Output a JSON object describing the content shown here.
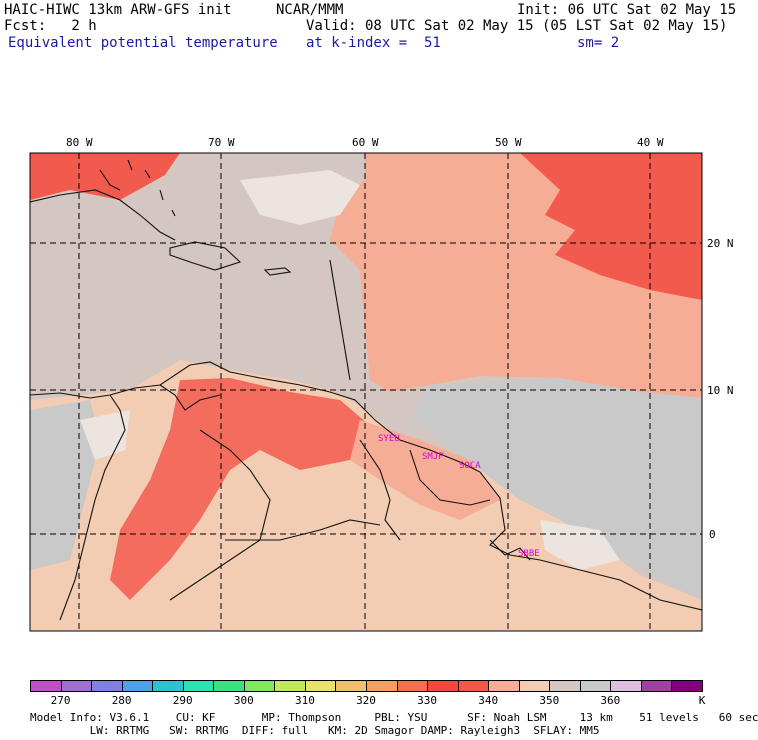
{
  "header": {
    "model": "HAIC-HIWC 13km ARW-GFS init",
    "org": "NCAR/MMM",
    "init": "Init: 06 UTC Sat 02 May 15",
    "fcst": "Fcst:   2 h",
    "valid": "Valid: 08 UTC Sat 02 May 15 (05 LST Sat 02 May 15)",
    "field": "Equivalent potential temperature",
    "level": "at k-index =  51",
    "smooth": "sm= 2"
  },
  "map": {
    "lon_labels": [
      "80 W",
      "70 W",
      "60 W",
      "50 W",
      "40 W"
    ],
    "lat_labels": [
      "20 N",
      "10 N",
      "0"
    ],
    "stations": [
      "SYEU",
      "SMJP",
      "SOCA",
      "SBBE"
    ],
    "colors": {
      "background": "#d4c6c1",
      "land": "#f3cdb3",
      "ocean_warm": "#f6ad95",
      "hot": "#f35a4e",
      "pale": "#ece4df",
      "gray": "#c9c9c9",
      "station": "#e000d8"
    }
  },
  "colorbar": {
    "colors": [
      "#c050c8",
      "#a070d0",
      "#8080e0",
      "#50a0e8",
      "#30c0d0",
      "#30e0b0",
      "#40e080",
      "#80e860",
      "#c0e860",
      "#e8e070",
      "#f0c070",
      "#f0a060",
      "#f07050",
      "#f04a40",
      "#f25846",
      "#f6ad95",
      "#f3cdb3",
      "#d4c6c1",
      "#c9c9c9",
      "#e0c0e0",
      "#a040a0",
      "#800080"
    ],
    "labels": [
      "270",
      "280",
      "290",
      "300",
      "310",
      "320",
      "330",
      "340",
      "350",
      "360"
    ],
    "unit": "K"
  },
  "footer": {
    "line1": "Model Info: V3.6.1    CU: KF       MP: Thompson     PBL: YSU      SF: Noah LSM     13 km    51 levels   60 sec",
    "line2": "         LW: RRTMG   SW: RRTMG  DIFF: full   KM: 2D Smagor DAMP: Rayleigh3  SFLAY: MM5"
  }
}
